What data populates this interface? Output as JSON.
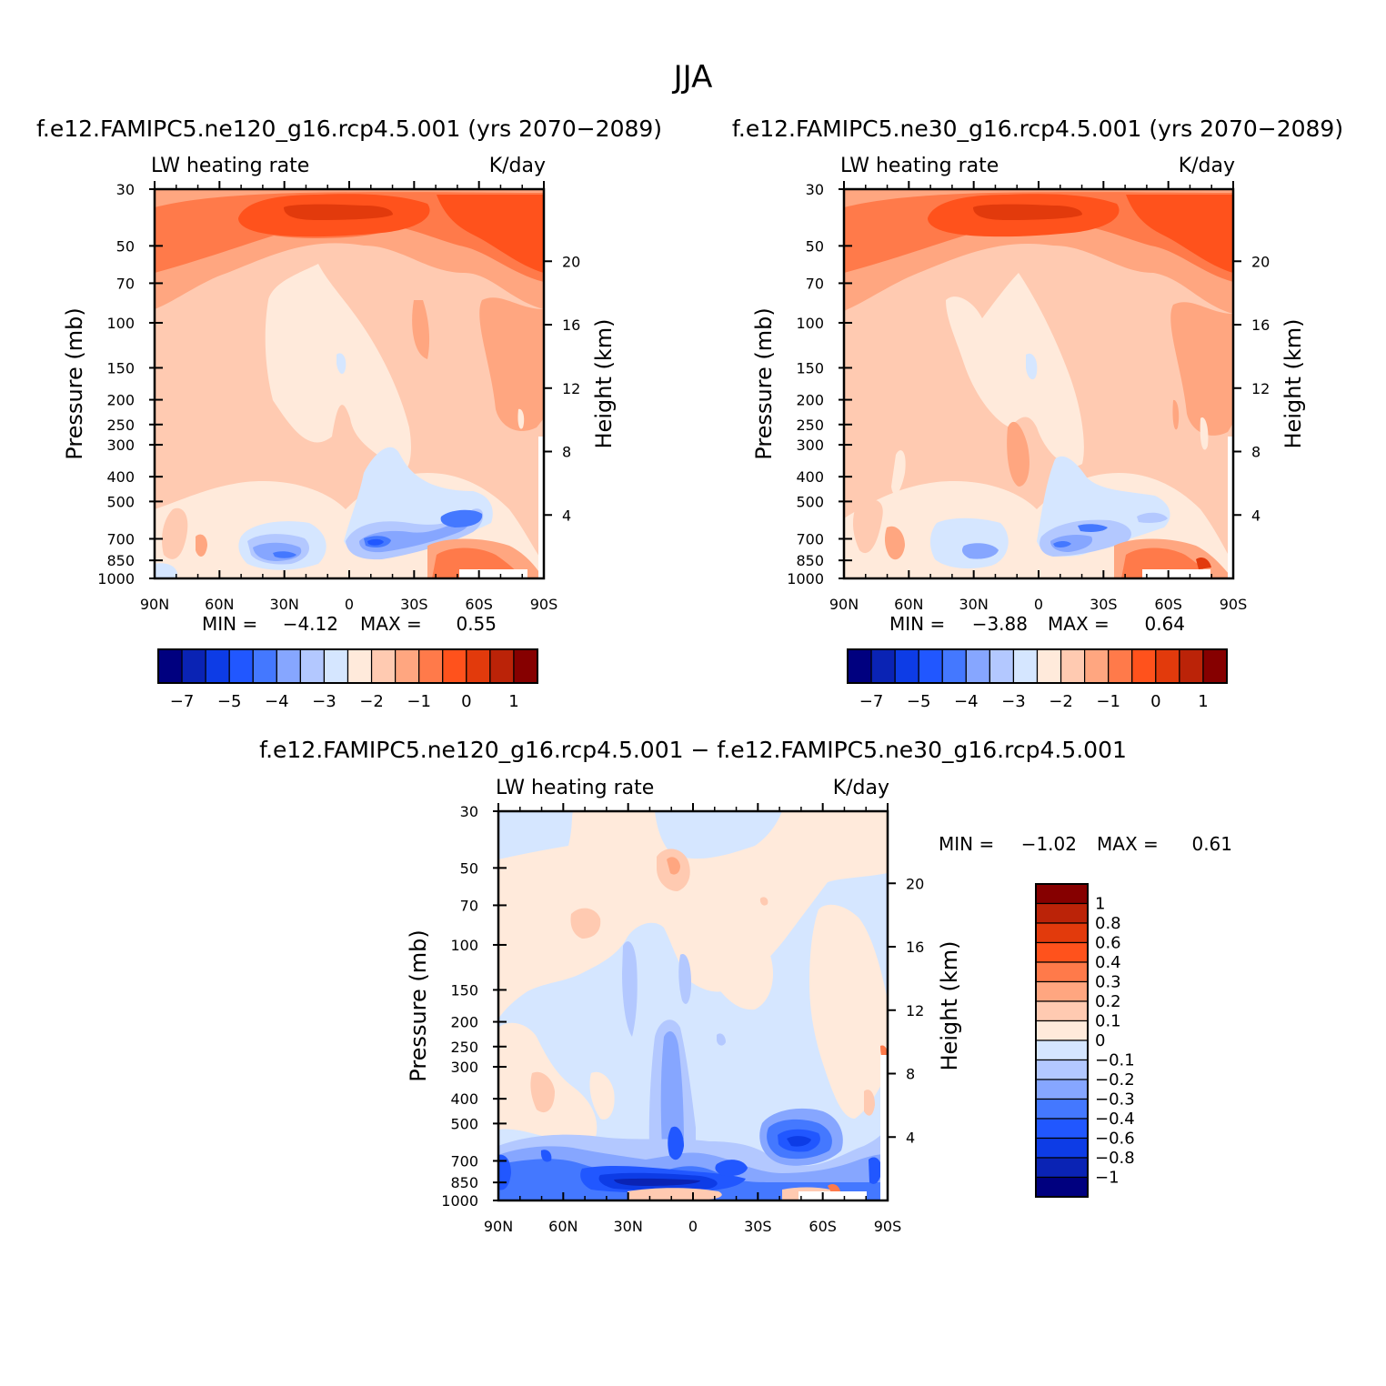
{
  "figure": {
    "title": "JJA"
  },
  "chart_data": [
    {
      "type": "heatmap",
      "title": "f.e12.FAMIPC5.ne120_g16.rcp4.5.001 (yrs 2070−2089)",
      "left_label": "LW heating rate",
      "right_label": "K/day",
      "xlabel": "",
      "ylabel": "Pressure (mb)",
      "y2label": "Height (km)",
      "x_ticks": [
        "90N",
        "60N",
        "30N",
        "0",
        "30S",
        "60S",
        "90S"
      ],
      "y_ticks": [
        30,
        50,
        70,
        100,
        150,
        200,
        250,
        300,
        400,
        500,
        700,
        850,
        1000
      ],
      "y_ticks_labels": [
        "30",
        "50",
        "70",
        "100",
        "150",
        "200",
        "250",
        "300",
        "400",
        "500",
        "700",
        "850",
        "1000"
      ],
      "y_range_mb": [
        30,
        1000
      ],
      "y_scale": "log",
      "y2_ticks": [
        20,
        16,
        12,
        8,
        4
      ],
      "y2_ticks_labels": [
        "20",
        "16",
        "12",
        "8",
        "4"
      ],
      "min_label": "MIN =",
      "min_value": "−4.12",
      "max_label": "MAX =",
      "max_value": "0.55",
      "colorbar_orientation": "horizontal",
      "colorbar_labels": [
        "−7",
        "−5",
        "−4",
        "−3",
        "−2",
        "−1",
        "0",
        "1"
      ]
    },
    {
      "type": "heatmap",
      "title": "f.e12.FAMIPC5.ne30_g16.rcp4.5.001 (yrs 2070−2089)",
      "left_label": "LW heating rate",
      "right_label": "K/day",
      "xlabel": "",
      "ylabel": "Pressure (mb)",
      "y2label": "Height (km)",
      "x_ticks": [
        "90N",
        "60N",
        "30N",
        "0",
        "30S",
        "60S",
        "90S"
      ],
      "y_ticks": [
        30,
        50,
        70,
        100,
        150,
        200,
        250,
        300,
        400,
        500,
        700,
        850,
        1000
      ],
      "y_ticks_labels": [
        "30",
        "50",
        "70",
        "100",
        "150",
        "200",
        "250",
        "300",
        "400",
        "500",
        "700",
        "850",
        "1000"
      ],
      "y_range_mb": [
        30,
        1000
      ],
      "y_scale": "log",
      "y2_ticks": [
        20,
        16,
        12,
        8,
        4
      ],
      "y2_ticks_labels": [
        "20",
        "16",
        "12",
        "8",
        "4"
      ],
      "min_label": "MIN =",
      "min_value": "−3.88",
      "max_label": "MAX =",
      "max_value": "0.64",
      "colorbar_orientation": "horizontal",
      "colorbar_labels": [
        "−7",
        "−5",
        "−4",
        "−3",
        "−2",
        "−1",
        "0",
        "1"
      ]
    },
    {
      "type": "heatmap",
      "title": "f.e12.FAMIPC5.ne120_g16.rcp4.5.001 − f.e12.FAMIPC5.ne30_g16.rcp4.5.001",
      "left_label": "LW heating rate",
      "right_label": "K/day",
      "xlabel": "",
      "ylabel": "Pressure (mb)",
      "y2label": "Height (km)",
      "x_ticks": [
        "90N",
        "60N",
        "30N",
        "0",
        "30S",
        "60S",
        "90S"
      ],
      "y_ticks": [
        30,
        50,
        70,
        100,
        150,
        200,
        250,
        300,
        400,
        500,
        700,
        850,
        1000
      ],
      "y_ticks_labels": [
        "30",
        "50",
        "70",
        "100",
        "150",
        "200",
        "250",
        "300",
        "400",
        "500",
        "700",
        "850",
        "1000"
      ],
      "y_range_mb": [
        30,
        1000
      ],
      "y_scale": "log",
      "y2_ticks": [
        20,
        16,
        12,
        8,
        4
      ],
      "y2_ticks_labels": [
        "20",
        "16",
        "12",
        "8",
        "4"
      ],
      "min_label": "MIN =",
      "min_value": "−1.02",
      "max_label": "MAX =",
      "max_value": "0.61",
      "colorbar_orientation": "vertical",
      "colorbar_labels": [
        "1",
        "0.8",
        "0.6",
        "0.4",
        "0.3",
        "0.2",
        "0.1",
        "0",
        "−0.1",
        "−0.2",
        "−0.3",
        "−0.4",
        "−0.6",
        "−0.8",
        "−1"
      ]
    }
  ],
  "palette": [
    "#00007f",
    "#0a23b4",
    "#0d3ce6",
    "#2157ff",
    "#4478ff",
    "#86a6ff",
    "#b3c8ff",
    "#d5e6ff",
    "#ffeadb",
    "#ffcab1",
    "#ffa680",
    "#ff7a4a",
    "#ff521c",
    "#e23a0c",
    "#bb2308",
    "#860000"
  ]
}
